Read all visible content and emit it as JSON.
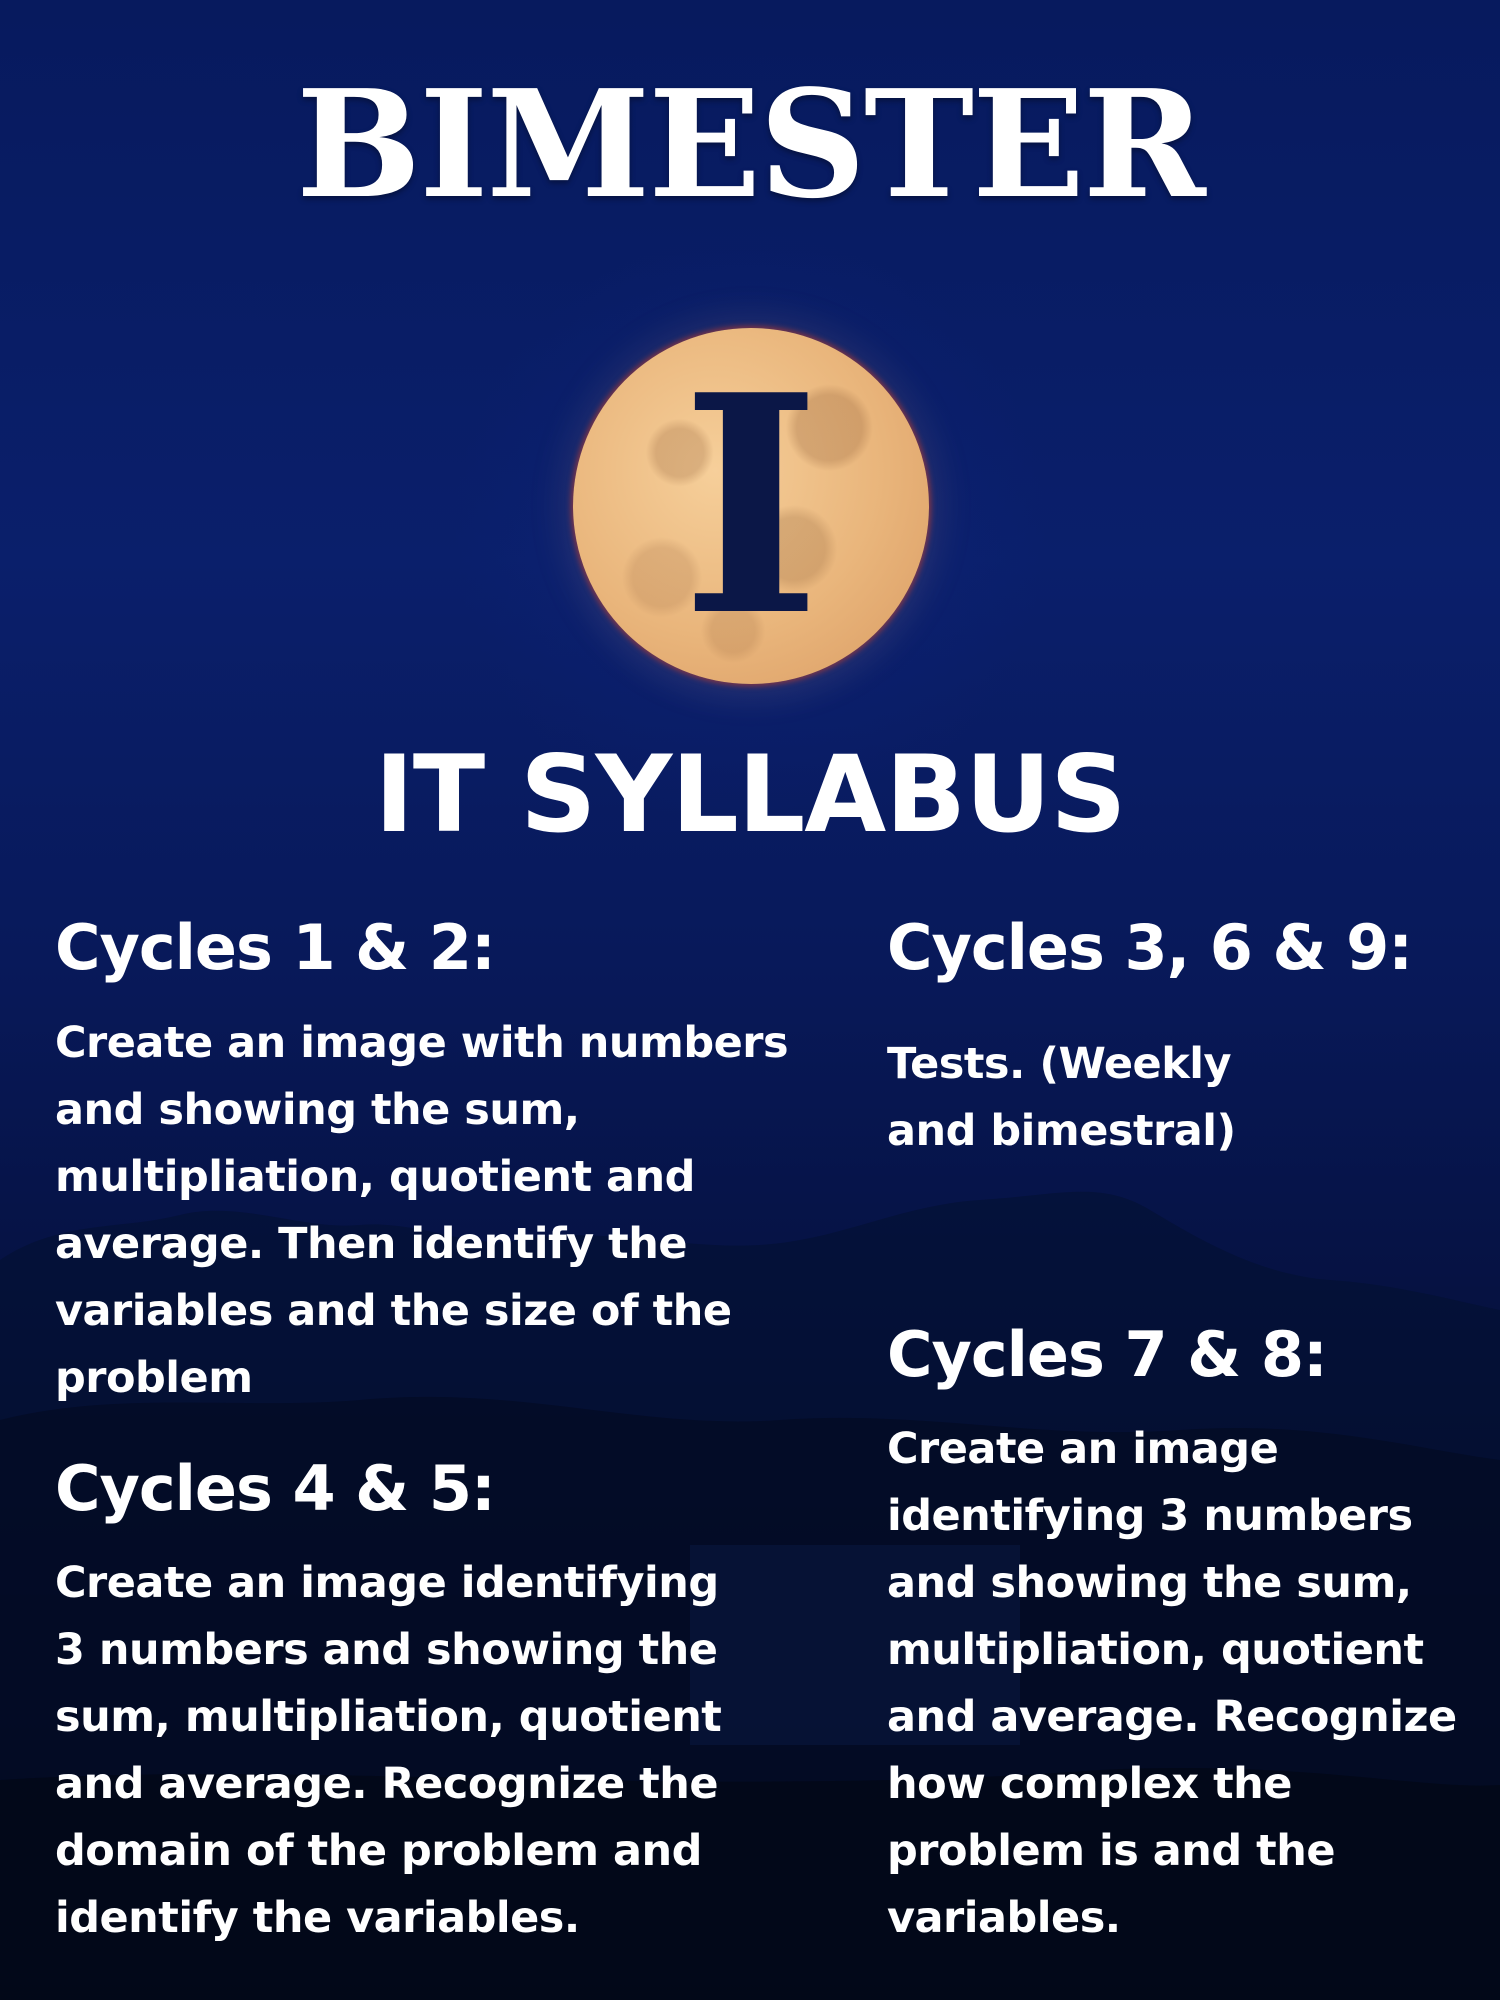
{
  "poster": {
    "title": "BIMESTER",
    "numeral": "I",
    "subtitle": "IT SYLLABUS",
    "sections": [
      {
        "heading": "Cycles 1 & 2:",
        "lines": [
          "Create an image with numbers",
          "and showing the sum,",
          "multipliation, quotient and",
          "average.  Then identify the",
          "variables and the size of the",
          "problem"
        ]
      },
      {
        "heading": "Cycles 3, 6 & 9:",
        "lines": [
          "Tests. (Weekly",
          "and bimestral)"
        ]
      },
      {
        "heading": "Cycles 4 & 5:",
        "lines": [
          "Create an image identifying",
          "3 numbers and showing the",
          "sum, multipliation, quotient",
          "and average. Recognize the",
          "domain of the problem and",
          "identify the variables."
        ]
      },
      {
        "heading": "Cycles 7 & 8:",
        "lines": [
          "Create an image",
          "identifying 3 numbers",
          "and showing the sum,",
          "multipliation, quotient",
          "and average. Recognize",
          "how complex  the",
          "problem is and the",
          "variables."
        ]
      }
    ],
    "colors": {
      "background_top": "#071a5e",
      "background_bottom": "#020718",
      "moon": "#e9b57b",
      "numeral": "#0b1747",
      "text": "#ffffff"
    },
    "icons": [
      "full-moon"
    ]
  }
}
